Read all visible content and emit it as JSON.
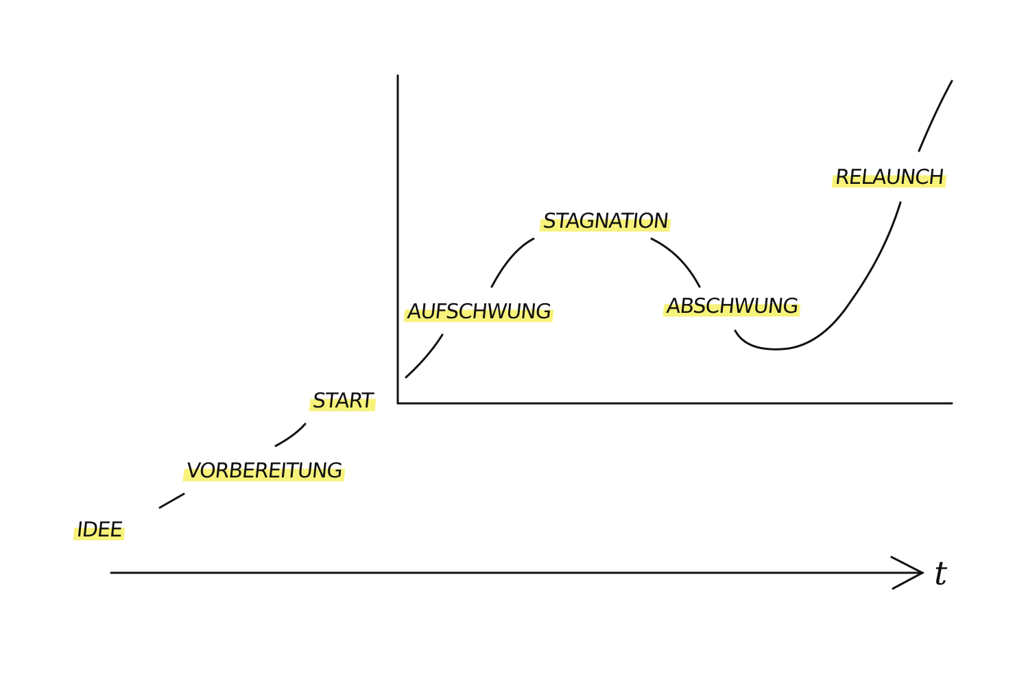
{
  "nodes": [
    {
      "label": "IDEE"
    },
    {
      "label": "VORBEREITUNG"
    },
    {
      "label": "START"
    },
    {
      "label": "AUFSCHWUNG"
    },
    {
      "label": "STAGNATION"
    },
    {
      "label": "ABSCHWUNG"
    },
    {
      "label": "RELAUNCH"
    }
  ],
  "axis_label": "t"
}
